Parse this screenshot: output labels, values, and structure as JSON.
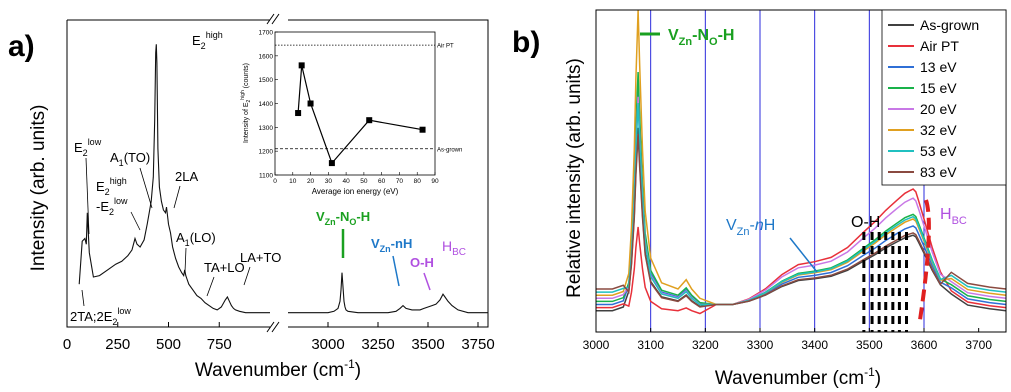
{
  "chart_data": [
    {
      "panel": "a)",
      "type": "line",
      "xlabel": "Wavenumber (cm",
      "xlabel_sup": "-1",
      "xlabel_close": ")",
      "ylabel": "Intensity (arb. units)",
      "x_ticks_left": [
        "0",
        "250",
        "500",
        "750"
      ],
      "x_ticks_right": [
        "3000",
        "3250",
        "3500",
        "3750"
      ],
      "xlim_left": [
        0,
        1000
      ],
      "xlim_right": [
        2800,
        3800
      ],
      "grid": false,
      "series": [
        {
          "x": [
            60,
            75,
            88,
            95,
            100,
            110,
            130,
            160,
            200,
            240,
            270,
            300,
            320,
            335,
            345,
            360,
            380,
            395,
            405,
            415,
            425,
            432,
            437,
            440,
            443,
            448,
            455,
            465,
            475,
            485,
            490,
            495,
            500,
            510,
            520,
            535,
            550,
            565,
            575,
            580,
            585,
            590,
            600,
            620,
            640,
            660,
            680,
            700,
            720,
            740,
            760,
            780,
            790,
            800,
            810,
            820,
            830,
            850,
            880,
            910,
            940,
            970,
            1000
          ],
          "y": [
            0.3,
            0.6,
            0.62,
            0.58,
            0.8,
            0.52,
            0.35,
            0.36,
            0.4,
            0.44,
            0.46,
            0.5,
            0.54,
            0.62,
            0.58,
            0.56,
            0.61,
            0.72,
            0.8,
            0.88,
            1.05,
            1.45,
            1.92,
            1.98,
            1.85,
            1.25,
            0.98,
            0.88,
            0.82,
            0.8,
            0.84,
            0.78,
            0.72,
            0.66,
            0.56,
            0.48,
            0.42,
            0.38,
            0.36,
            0.4,
            0.36,
            0.34,
            0.3,
            0.26,
            0.22,
            0.2,
            0.17,
            0.15,
            0.13,
            0.12,
            0.14,
            0.19,
            0.21,
            0.18,
            0.15,
            0.13,
            0.12,
            0.11,
            0.1,
            0.1,
            0.1,
            0.1,
            0.1
          ]
        },
        {
          "x": [
            2800,
            2850,
            2900,
            2950,
            3000,
            3030,
            3050,
            3060,
            3065,
            3070,
            3075,
            3080,
            3085,
            3090,
            3100,
            3150,
            3200,
            3250,
            3300,
            3340,
            3360,
            3375,
            3390,
            3420,
            3460,
            3480,
            3500,
            3520,
            3540,
            3560,
            3575,
            3585,
            3600,
            3620,
            3650,
            3700,
            3750,
            3800
          ],
          "y": [
            0.1,
            0.1,
            0.1,
            0.1,
            0.1,
            0.11,
            0.13,
            0.18,
            0.26,
            0.38,
            0.28,
            0.18,
            0.14,
            0.12,
            0.11,
            0.1,
            0.1,
            0.1,
            0.1,
            0.11,
            0.13,
            0.15,
            0.13,
            0.12,
            0.12,
            0.13,
            0.14,
            0.15,
            0.16,
            0.19,
            0.23,
            0.21,
            0.18,
            0.15,
            0.12,
            0.1,
            0.1,
            0.1
          ]
        }
      ],
      "annotations": {
        "e2low": {
          "main": "E",
          "sub": "2",
          "sup": "low"
        },
        "a1to": {
          "main": "A",
          "sub": "1",
          "rest": "(TO)"
        },
        "e2high_minus": {
          "main": "E",
          "sub": "2",
          "sup": "high"
        },
        "minus_e2low": {
          "main": "-E",
          "sub": "2",
          "sup": "low"
        },
        "e2high_top": {
          "main": "E",
          "sub": "2",
          "sup": "high"
        },
        "two_la": "2LA",
        "a1lo": {
          "main": "A",
          "sub": "1",
          "rest": "(LO)"
        },
        "ta_lo": "TA+LO",
        "la_to": "LA+TO",
        "two_ta": {
          "main": "2TA;2E",
          "sub": "2",
          "sup": "low"
        },
        "vzn_no_h": {
          "v": "V",
          "vsub": "Zn",
          "mid": "-N",
          "osub": "O",
          "end": "-H"
        },
        "vzn_nh": {
          "v": "V",
          "vsub": "Zn",
          "end": "-nH"
        },
        "oh": "O-H",
        "hbc": {
          "main": "H",
          "sub": "BC"
        }
      }
    },
    {
      "panel": "inset",
      "type": "scatter",
      "xlabel": "Average ion energy (eV)",
      "ylabel_main": "Intensity of E",
      "ylabel_sub": "2",
      "ylabel_sup": "high",
      "ylabel_end": " (counts)",
      "xlim": [
        0,
        90
      ],
      "ylim": [
        1100,
        1700
      ],
      "x_ticks": [
        "0",
        "10",
        "20",
        "30",
        "40",
        "50",
        "60",
        "70",
        "80",
        "90"
      ],
      "y_ticks": [
        "1100",
        "1200",
        "1300",
        "1400",
        "1500",
        "1600",
        "1700"
      ],
      "x": [
        13,
        15,
        20,
        32,
        53,
        83
      ],
      "y": [
        1360,
        1560,
        1400,
        1150,
        1330,
        1290
      ],
      "ref_lines": [
        {
          "label": "Air PT",
          "y": 1645
        },
        {
          "label": "As-grown",
          "y": 1210
        }
      ]
    },
    {
      "panel": "b)",
      "type": "line",
      "xlabel": "Wavenumber (cm",
      "xlabel_sup": "-1",
      "xlabel_close": ")",
      "ylabel": "Relative intensity (arb. units)",
      "xlim": [
        3000,
        3750
      ],
      "x_ticks": [
        "3000",
        "3100",
        "3200",
        "3300",
        "3400",
        "3500",
        "3600",
        "3700"
      ],
      "grid": false,
      "vlines": [
        3100,
        3200,
        3300,
        3400,
        3500,
        3600
      ],
      "legend_position": "top-right",
      "base_x": [
        3000,
        3030,
        3050,
        3060,
        3065,
        3070,
        3073,
        3077,
        3080,
        3085,
        3090,
        3100,
        3120,
        3150,
        3165,
        3175,
        3190,
        3220,
        3250,
        3280,
        3310,
        3340,
        3370,
        3400,
        3430,
        3460,
        3490,
        3510,
        3530,
        3550,
        3565,
        3575,
        3580,
        3585,
        3590,
        3600,
        3615,
        3630,
        3650,
        3680,
        3720,
        3750
      ],
      "base_y": [
        0.05,
        0.05,
        0.07,
        0.15,
        0.3,
        0.55,
        0.78,
        1.0,
        0.82,
        0.55,
        0.35,
        0.2,
        0.12,
        0.1,
        0.13,
        0.1,
        0.07,
        0.05,
        0.05,
        0.09,
        0.16,
        0.26,
        0.33,
        0.35,
        0.38,
        0.45,
        0.56,
        0.63,
        0.71,
        0.78,
        0.83,
        0.85,
        0.86,
        0.84,
        0.78,
        0.65,
        0.45,
        0.28,
        0.14,
        0.08,
        0.06,
        0.05
      ],
      "series": [
        {
          "name": "As-grown",
          "color": "#404040",
          "peak": 0.62,
          "broad": 0.6
        },
        {
          "name": "Air PT",
          "color": "#e8303a",
          "peak": 0.3,
          "broad": 1.0
        },
        {
          "name": "13 eV",
          "color": "#2f6fd6",
          "peak": 0.75,
          "broad": 0.68
        },
        {
          "name": "15 eV",
          "color": "#19b24a",
          "peak": 0.8,
          "broad": 0.78
        },
        {
          "name": "20 eV",
          "color": "#c878e6",
          "peak": 0.72,
          "broad": 0.92
        },
        {
          "name": "32 eV",
          "color": "#e0a020",
          "peak": 1.0,
          "broad": 0.74
        },
        {
          "name": "53 eV",
          "color": "#20c0c0",
          "peak": 0.7,
          "broad": 0.76
        },
        {
          "name": "83 eV",
          "color": "#8a4a40",
          "peak": 0.6,
          "broad": 0.62
        }
      ],
      "oh_lines": [
        3490,
        3505,
        3518,
        3530,
        3543,
        3555,
        3568
      ],
      "annotations": {
        "vzn_no_h": {
          "v": "V",
          "vsub": "Zn",
          "mid": "-N",
          "osub": "O",
          "end": "-H"
        },
        "vzn_nh": {
          "v": "V",
          "vsub": "Zn",
          "mid": "-",
          "italic": "n",
          "end": "H"
        },
        "oh": "O-H",
        "hbc": {
          "main": "H",
          "sub": "BC"
        }
      }
    }
  ]
}
